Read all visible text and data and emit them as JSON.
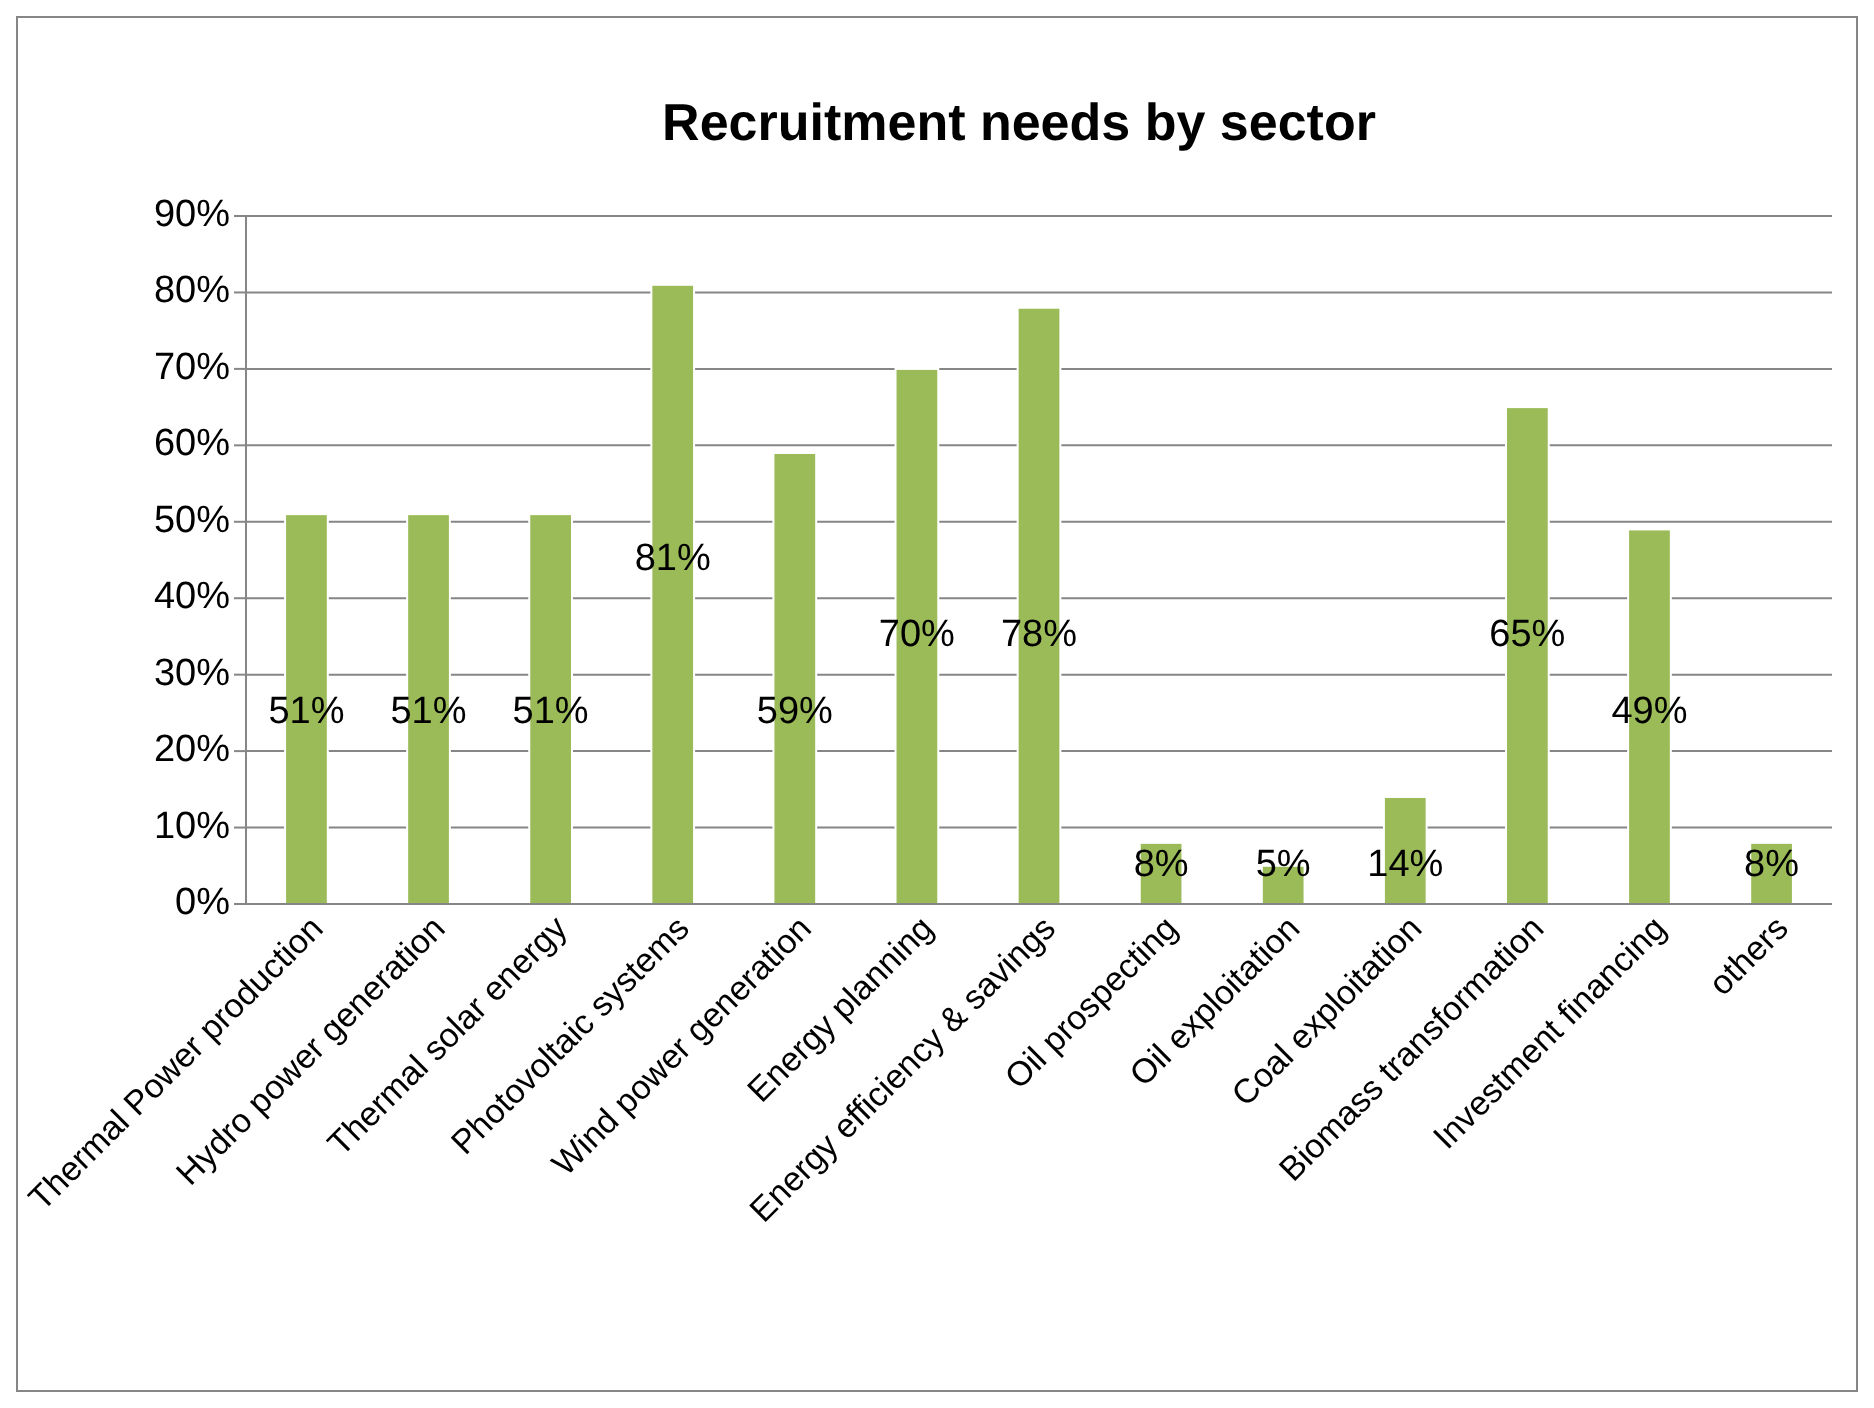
{
  "chart_data": {
    "type": "bar",
    "title": "Recruitment needs by sector",
    "categories": [
      "Thermal Power production",
      "Hydro power generation",
      "Thermal solar energy",
      "Photovoltaic systems",
      "Wind power generation",
      "Energy planning",
      "Energy efficiency & savings",
      "Oil prospecting",
      "Oil exploitation",
      "Coal exploitation",
      "Biomass transformation",
      "Investment financing",
      "others"
    ],
    "values": [
      51,
      51,
      51,
      81,
      59,
      70,
      78,
      8,
      5,
      14,
      65,
      49,
      8
    ],
    "value_labels": [
      "51%",
      "51%",
      "51%",
      "81%",
      "59%",
      "70%",
      "78%",
      "8%",
      "5%",
      "14%",
      "65%",
      "49%",
      "8%"
    ],
    "color": "#9bbb59",
    "ylim": [
      0,
      90
    ],
    "yticks": [
      {
        "value": 0,
        "label": "0%"
      },
      {
        "value": 10,
        "label": "10%"
      },
      {
        "value": 20,
        "label": "20%"
      },
      {
        "value": 30,
        "label": "30%"
      },
      {
        "value": 40,
        "label": "40%"
      },
      {
        "value": 50,
        "label": "50%"
      },
      {
        "value": 60,
        "label": "60%"
      },
      {
        "value": 70,
        "label": "70%"
      },
      {
        "value": 80,
        "label": "80%"
      },
      {
        "value": 90,
        "label": "90%"
      }
    ],
    "grid": "y"
  }
}
